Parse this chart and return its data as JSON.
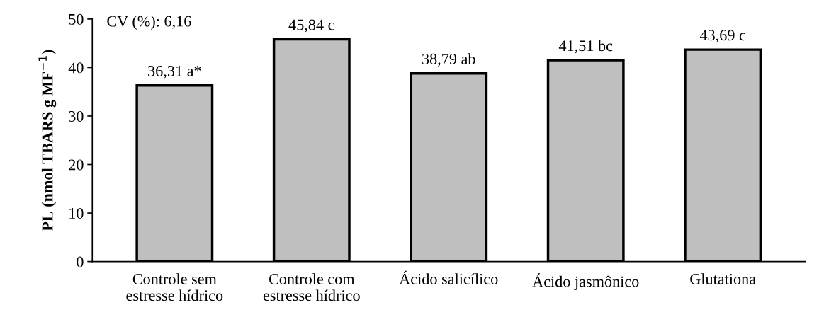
{
  "chart_data": {
    "type": "bar",
    "ylabel": "PL (nmol TBARS g MF$^{−1}$)",
    "categories": [
      "Controle sem\nestresse hídrico",
      "Controle com\nestresse hídrico",
      "Ácido salicílico",
      "Ácido jasmônico",
      "Glutationa"
    ],
    "values": [
      36.31,
      45.84,
      38.79,
      41.51,
      43.69
    ],
    "value_labels": [
      "36,31 a*",
      "45,84 c",
      "38,79 ab",
      "41,51 bc",
      "43,69 c"
    ],
    "color": "#bfbfbf",
    "ylim": [
      0,
      50
    ],
    "yticks": [
      0,
      10,
      20,
      30,
      40,
      50
    ],
    "annotations": [
      "CV (%): 6,16"
    ],
    "grid": false,
    "legend": false
  }
}
